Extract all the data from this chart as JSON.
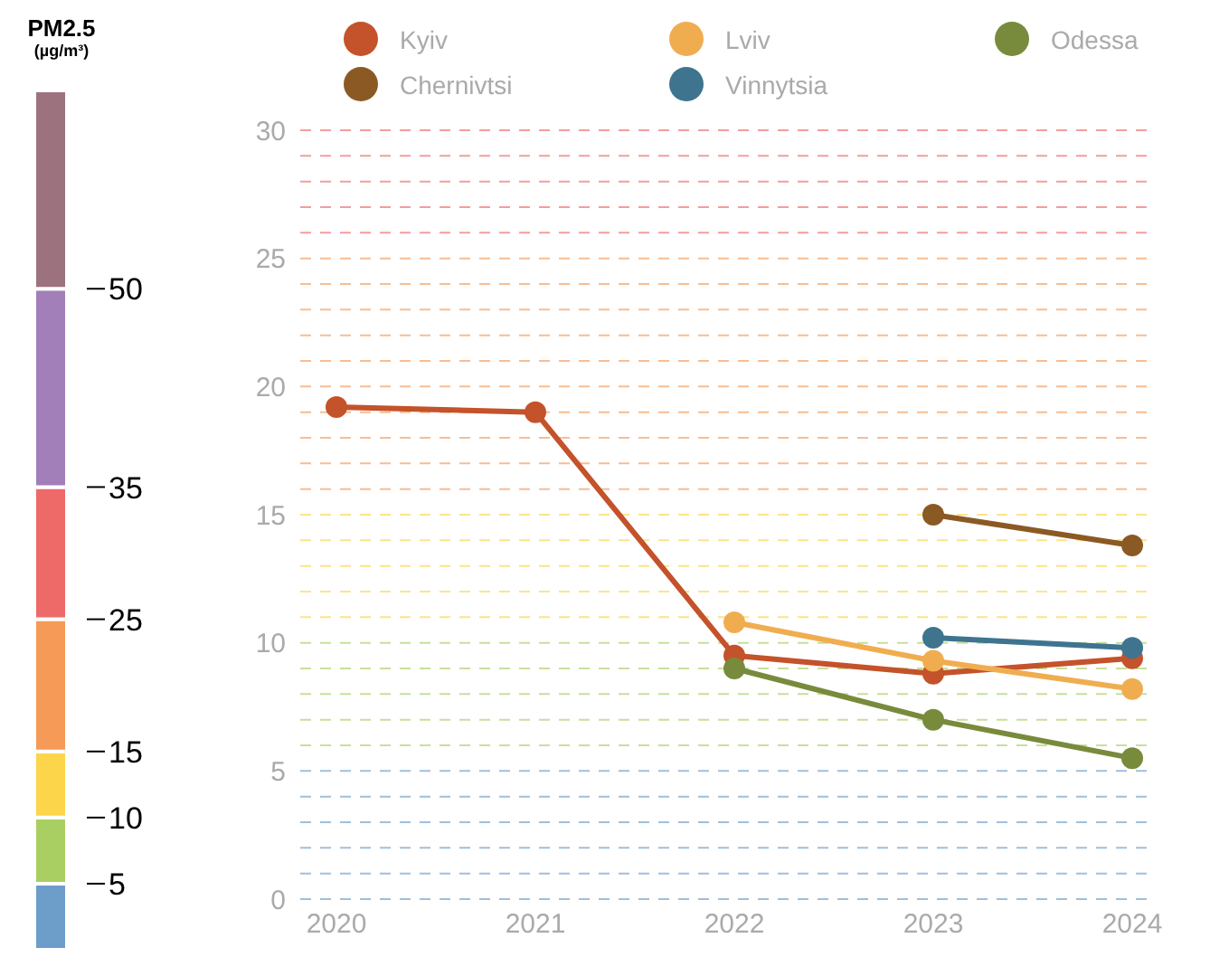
{
  "chart_data": [
    {
      "type": "bar",
      "stacked": true,
      "title": "PM2.5",
      "subtitle": "(µg/m³)",
      "categories": [
        null
      ],
      "ylim": [
        0,
        65
      ],
      "yticks": [
        5,
        10,
        15,
        25,
        35,
        50
      ],
      "tick_labels": "y",
      "series": [
        {
          "color": "#6d9dc9",
          "values": [
            5
          ]
        },
        {
          "color": "#a9cf62",
          "values": [
            5
          ]
        },
        {
          "color": "#fcd54b",
          "values": [
            5
          ]
        },
        {
          "color": "#f59a57",
          "values": [
            10
          ]
        },
        {
          "color": "#ed6a69",
          "values": [
            10
          ]
        },
        {
          "color": "#a27fb9",
          "values": [
            15
          ]
        },
        {
          "color": "#9c727f",
          "values": [
            15
          ]
        }
      ]
    },
    {
      "type": "line",
      "categories": [
        "2020",
        "2021",
        "2022",
        "2023",
        "2024"
      ],
      "ylim": [
        0,
        30
      ],
      "yticks": [
        0,
        {
          "value": 1,
          "label": null
        },
        {
          "value": 2,
          "label": null
        },
        {
          "value": 3,
          "label": null
        },
        {
          "value": 4,
          "label": null
        },
        5,
        {
          "value": 6,
          "label": null
        },
        {
          "value": 7,
          "label": null
        },
        {
          "value": 8,
          "label": null
        },
        {
          "value": 9,
          "label": null
        },
        10,
        {
          "value": 11,
          "label": null
        },
        {
          "value": 12,
          "label": null
        },
        {
          "value": 13,
          "label": null
        },
        {
          "value": 14,
          "label": null
        },
        15,
        {
          "value": 16,
          "label": null
        },
        {
          "value": 17,
          "label": null
        },
        {
          "value": 18,
          "label": null
        },
        {
          "value": 19,
          "label": null
        },
        20,
        {
          "value": 21,
          "label": null
        },
        {
          "value": 22,
          "label": null
        },
        {
          "value": 23,
          "label": null
        },
        {
          "value": 24,
          "label": null
        },
        25,
        {
          "value": 26,
          "label": null
        },
        {
          "value": 27,
          "label": null
        },
        {
          "value": 28,
          "label": null
        },
        {
          "value": 29,
          "label": null
        },
        30
      ],
      "grid": "y",
      "legend": "top",
      "marker": "circle",
      "line_style": "solid",
      "series": [
        {
          "name": "Kyiv",
          "color": "#c4522a",
          "values": [
            19.2,
            19.0,
            9.5,
            8.8,
            9.4
          ]
        },
        {
          "name": "Lviv",
          "color": "#f0ad50",
          "values": [
            null,
            null,
            10.8,
            9.3,
            8.2
          ]
        },
        {
          "name": "Odessa",
          "color": "#788b3c",
          "values": [
            null,
            null,
            9.0,
            7.0,
            5.5
          ]
        },
        {
          "name": "Chernivtsi",
          "color": "#8b5a24",
          "values": [
            null,
            null,
            null,
            15.0,
            13.8
          ]
        },
        {
          "name": "Vinnytsia",
          "color": "#3f748f",
          "values": [
            null,
            null,
            null,
            10.2,
            9.8
          ]
        }
      ]
    }
  ]
}
